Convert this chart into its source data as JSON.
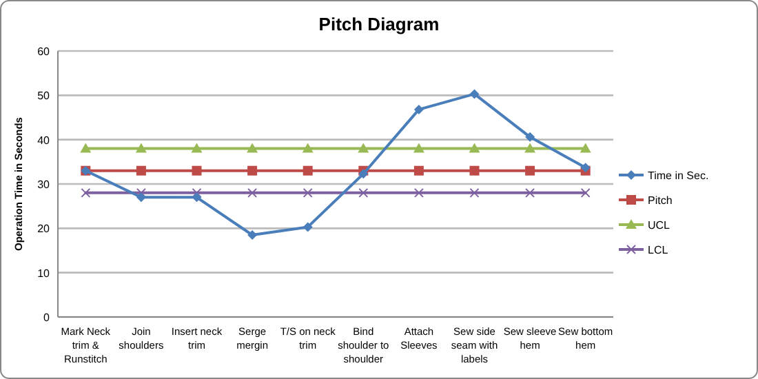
{
  "chart_data": {
    "type": "line",
    "title": "Pitch Diagram",
    "ylabel": "Operation Time in Seconds",
    "categories": [
      "Mark Neck trim & Runstitch",
      "Join shoulders",
      "Insert neck trim",
      "Serge mergin",
      "T/S on neck trim",
      "Bind shoulder to shoulder",
      "Attach Sleeves",
      "Sew side seam with labels",
      "Sew sleeve hem",
      "Sew bottom hem"
    ],
    "series": [
      {
        "name": "Time in Sec.",
        "color": "#4a7ebb",
        "marker": "diamond",
        "values": [
          33,
          27,
          27,
          18.5,
          20.3,
          32.3,
          46.8,
          50.3,
          40.6,
          33.7
        ]
      },
      {
        "name": "Pitch",
        "color": "#be4b48",
        "marker": "square",
        "values": [
          33,
          33,
          33,
          33,
          33,
          33,
          33,
          33,
          33,
          33
        ]
      },
      {
        "name": "UCL",
        "color": "#98b954",
        "marker": "triangle",
        "values": [
          38,
          38,
          38,
          38,
          38,
          38,
          38,
          38,
          38,
          38
        ]
      },
      {
        "name": "LCL",
        "color": "#7d60a0",
        "marker": "cross",
        "values": [
          28,
          28,
          28,
          28,
          28,
          28,
          28,
          28,
          28,
          28
        ]
      }
    ],
    "ylim": [
      0,
      60
    ],
    "yticks": [
      0,
      10,
      20,
      30,
      40,
      50,
      60
    ],
    "grid": "y",
    "legend": "right",
    "line_style": "solid"
  }
}
